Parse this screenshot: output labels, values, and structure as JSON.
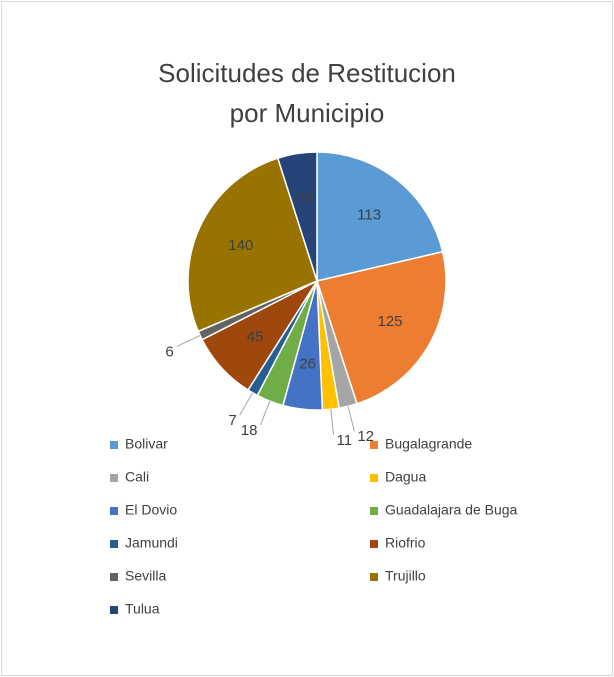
{
  "chart_data": {
    "type": "pie",
    "title": "Solicitudes de Restitucion por Municipio",
    "categories": [
      "Bolivar",
      "Bugalagrande",
      "Cali",
      "Dagua",
      "El Dovio",
      "Guadalajara de Buga",
      "Jamundi",
      "Riofrio",
      "Sevilla",
      "Trujillo",
      "Tulua"
    ],
    "values": [
      113,
      125,
      12,
      11,
      26,
      18,
      7,
      45,
      6,
      140,
      26
    ],
    "colors": [
      "#5b9bd5",
      "#ed7d31",
      "#a5a5a5",
      "#ffc000",
      "#4472c4",
      "#70ad47",
      "#255e91",
      "#9e480e",
      "#636363",
      "#997300",
      "#264478"
    ],
    "legend": "bottom"
  }
}
